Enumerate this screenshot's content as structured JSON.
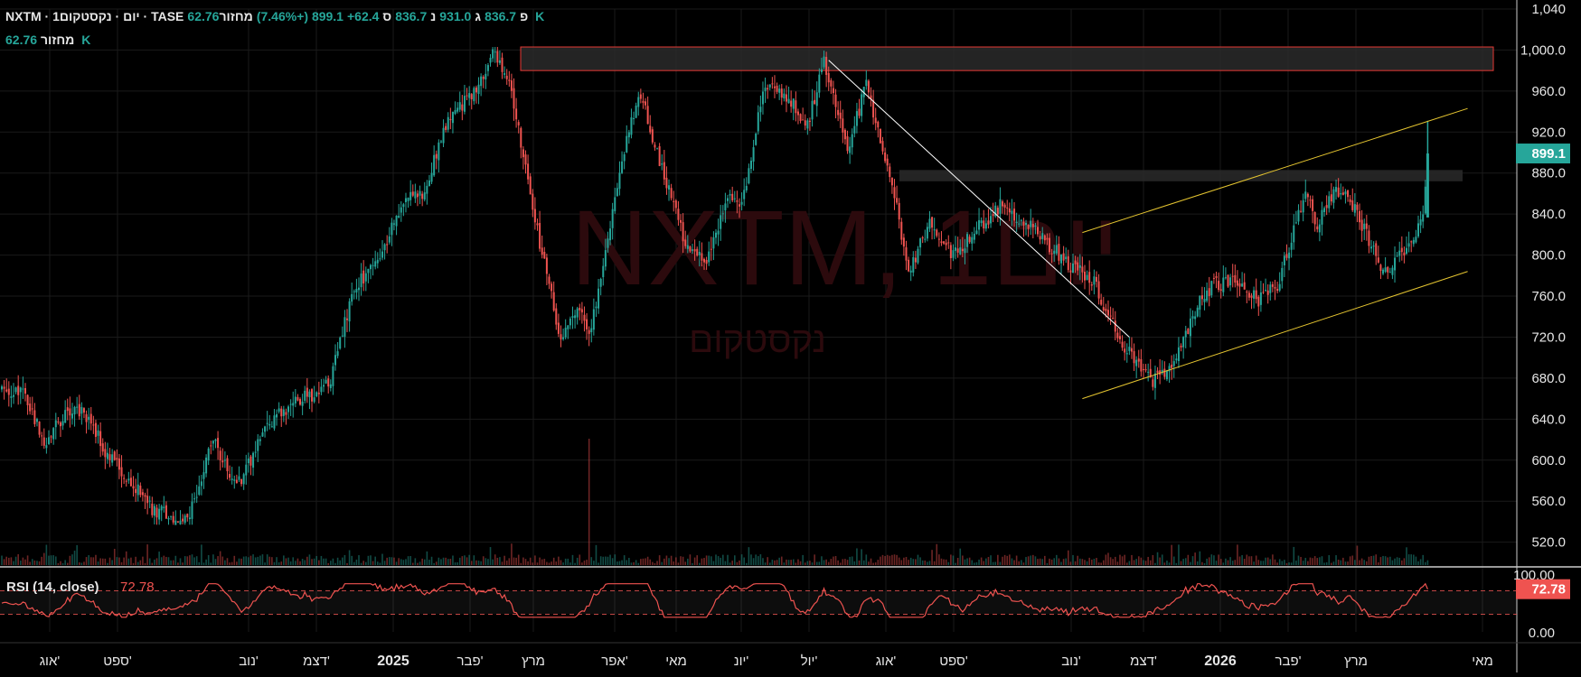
{
  "header": {
    "symbol_line": "NXTM · 1יום · נקסטקום · TASE",
    "o_label": "פ",
    "o_value": "836.7",
    "h_label": "ג",
    "h_value": "931.0",
    "l_label": "נ",
    "l_value": "836.7",
    "c_label": "ס",
    "c_value": "899.1",
    "change": "+62.4 (+7.46%)",
    "volume_label": "מחזור",
    "volume_value": "62.76 K",
    "volume_label2": "מחזור",
    "volume_value2": "62.76 K"
  },
  "watermark": {
    "title": "NXTM, 1יום",
    "subtitle": "נקסטקום"
  },
  "colors": {
    "up": "#26a69a",
    "down": "#ef5350",
    "background": "#000000",
    "grid": "#1a1a1a",
    "trend_white": "#ffffff",
    "channel": "#e5c530",
    "zone_border": "#e53935",
    "zone_fill": "#2a2a2a",
    "last_price_bg": "#26a69a",
    "rsi_badge_bg": "#ef5350"
  },
  "chart_data": [
    {
      "type": "candlestick",
      "y_ticks": [
        "1,040",
        "1,000.0",
        "960.0",
        "920.0",
        "880.0",
        "840.0",
        "800.0",
        "760.0",
        "720.0",
        "680.0",
        "640.0",
        "600.0",
        "560.0",
        "520.0"
      ],
      "ylim": [
        510,
        1040
      ],
      "x_ticks": [
        "אוג'",
        "ספט'",
        "נוב'",
        "דצמ'",
        "2025",
        "פבר'",
        "מרץ",
        "אפר'",
        "מאי",
        "יונ'",
        "יול'",
        "אוג'",
        "ספט'",
        "נוב'",
        "דצמ'",
        "2026",
        "פבר'",
        "מרץ",
        "מאי"
      ],
      "last_price": "899.1",
      "anchors": [
        [
          0,
          672
        ],
        [
          10,
          665
        ],
        [
          18,
          618
        ],
        [
          28,
          648
        ],
        [
          35,
          648
        ],
        [
          45,
          605
        ],
        [
          55,
          580
        ],
        [
          65,
          550
        ],
        [
          75,
          545
        ],
        [
          80,
          548
        ],
        [
          90,
          620
        ],
        [
          100,
          575
        ],
        [
          115,
          640
        ],
        [
          125,
          658
        ],
        [
          135,
          665
        ],
        [
          140,
          678
        ],
        [
          150,
          770
        ],
        [
          160,
          790
        ],
        [
          170,
          850
        ],
        [
          180,
          862
        ],
        [
          190,
          935
        ],
        [
          200,
          955
        ],
        [
          210,
          1000
        ],
        [
          216,
          965
        ],
        [
          220,
          920
        ],
        [
          230,
          800
        ],
        [
          238,
          718
        ],
        [
          245,
          750
        ],
        [
          250,
          720
        ],
        [
          260,
          840
        ],
        [
          266,
          915
        ],
        [
          272,
          955
        ],
        [
          280,
          892
        ],
        [
          290,
          818
        ],
        [
          300,
          790
        ],
        [
          310,
          860
        ],
        [
          315,
          845
        ],
        [
          325,
          970
        ],
        [
          335,
          955
        ],
        [
          343,
          925
        ],
        [
          350,
          990
        ],
        [
          360,
          905
        ],
        [
          368,
          965
        ],
        [
          372,
          930
        ],
        [
          380,
          860
        ],
        [
          386,
          780
        ],
        [
          395,
          835
        ],
        [
          405,
          800
        ],
        [
          415,
          825
        ],
        [
          425,
          848
        ],
        [
          435,
          835
        ],
        [
          445,
          812
        ],
        [
          455,
          790
        ],
        [
          465,
          775
        ],
        [
          475,
          720
        ],
        [
          485,
          690
        ],
        [
          490,
          676
        ],
        [
          500,
          700
        ],
        [
          510,
          755
        ],
        [
          515,
          770
        ],
        [
          525,
          775
        ],
        [
          535,
          755
        ],
        [
          543,
          770
        ],
        [
          550,
          825
        ],
        [
          555,
          860
        ],
        [
          560,
          830
        ],
        [
          568,
          865
        ],
        [
          575,
          850
        ],
        [
          582,
          815
        ],
        [
          588,
          780
        ],
        [
          593,
          795
        ],
        [
          600,
          815
        ],
        [
          605,
          838
        ],
        [
          607,
          899.1
        ]
      ],
      "wick_max": 1003,
      "wick_min": 537,
      "volume_spike_index": 250,
      "resistance_zones": [
        [
          980,
          1003
        ],
        [
          872,
          883
        ]
      ],
      "trendline_white": [
        [
          352,
          990
        ],
        [
          480,
          720
        ]
      ],
      "channel_upper": [
        [
          460,
          822
        ],
        [
          624,
          943
        ]
      ],
      "channel_lower": [
        [
          460,
          660
        ],
        [
          624,
          784
        ]
      ]
    },
    {
      "type": "line",
      "title": "RSI (14, close)",
      "value": "72.78",
      "y_ticks": [
        "100.00",
        "0.00"
      ],
      "ylim": [
        0,
        100
      ],
      "levels": [
        70,
        30
      ],
      "overbought_fill": true
    }
  ]
}
